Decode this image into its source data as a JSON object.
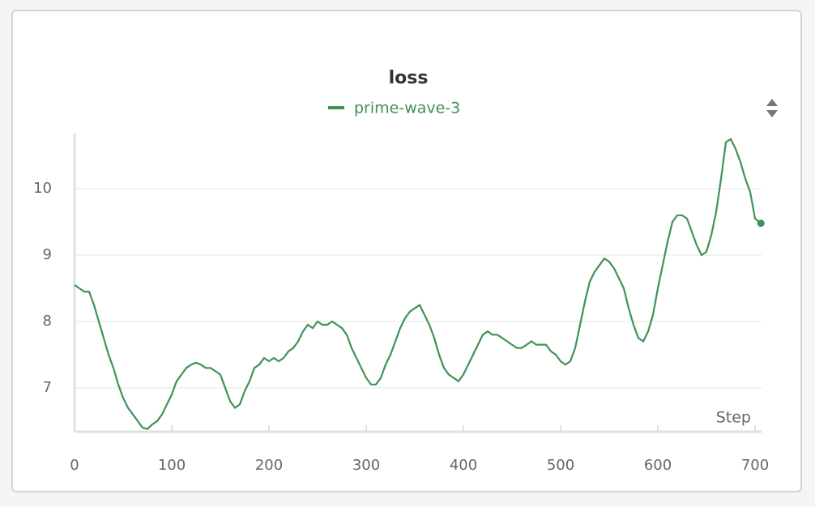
{
  "chart_data": {
    "type": "line",
    "title": "loss",
    "xlabel": "Step",
    "x": [
      0,
      5,
      10,
      15,
      20,
      25,
      30,
      35,
      40,
      45,
      50,
      55,
      60,
      65,
      70,
      75,
      80,
      85,
      90,
      95,
      100,
      105,
      110,
      115,
      120,
      125,
      130,
      135,
      140,
      145,
      150,
      155,
      160,
      165,
      170,
      175,
      180,
      185,
      190,
      195,
      200,
      205,
      210,
      215,
      220,
      225,
      230,
      235,
      240,
      245,
      250,
      255,
      260,
      265,
      270,
      275,
      280,
      285,
      290,
      295,
      300,
      305,
      310,
      315,
      320,
      325,
      330,
      335,
      340,
      345,
      350,
      355,
      360,
      365,
      370,
      375,
      380,
      385,
      390,
      395,
      400,
      405,
      410,
      415,
      420,
      425,
      430,
      435,
      440,
      445,
      450,
      455,
      460,
      465,
      470,
      475,
      480,
      485,
      490,
      495,
      500,
      505,
      510,
      515,
      520,
      525,
      530,
      535,
      540,
      545,
      550,
      555,
      560,
      565,
      570,
      575,
      580,
      585,
      590,
      595,
      600,
      605,
      610,
      615,
      620,
      625,
      630,
      635,
      640,
      645,
      650,
      655,
      660,
      665,
      670,
      675,
      680,
      685,
      690,
      695,
      700,
      706
    ],
    "series": [
      {
        "name": "prime-wave-3",
        "color": "#3f9255",
        "values": [
          8.55,
          8.5,
          8.45,
          8.45,
          8.25,
          8.0,
          7.75,
          7.5,
          7.3,
          7.05,
          6.85,
          6.7,
          6.6,
          6.5,
          6.4,
          6.38,
          6.45,
          6.5,
          6.6,
          6.75,
          6.9,
          7.1,
          7.2,
          7.3,
          7.35,
          7.38,
          7.35,
          7.3,
          7.3,
          7.25,
          7.2,
          7.0,
          6.8,
          6.7,
          6.75,
          6.95,
          7.1,
          7.3,
          7.35,
          7.45,
          7.4,
          7.45,
          7.4,
          7.45,
          7.55,
          7.6,
          7.7,
          7.85,
          7.95,
          7.9,
          8.0,
          7.95,
          7.95,
          8.0,
          7.95,
          7.9,
          7.8,
          7.6,
          7.45,
          7.3,
          7.15,
          7.05,
          7.05,
          7.15,
          7.35,
          7.5,
          7.7,
          7.9,
          8.05,
          8.15,
          8.2,
          8.25,
          8.1,
          7.95,
          7.75,
          7.5,
          7.3,
          7.2,
          7.15,
          7.1,
          7.2,
          7.35,
          7.5,
          7.65,
          7.8,
          7.85,
          7.8,
          7.8,
          7.75,
          7.7,
          7.65,
          7.6,
          7.6,
          7.65,
          7.7,
          7.65,
          7.65,
          7.65,
          7.55,
          7.5,
          7.4,
          7.35,
          7.4,
          7.6,
          7.95,
          8.3,
          8.6,
          8.75,
          8.85,
          8.95,
          8.9,
          8.8,
          8.65,
          8.5,
          8.2,
          7.95,
          7.75,
          7.7,
          7.85,
          8.1,
          8.5,
          8.85,
          9.2,
          9.5,
          9.6,
          9.6,
          9.55,
          9.35,
          9.15,
          9.0,
          9.05,
          9.3,
          9.65,
          10.15,
          10.7,
          10.75,
          10.6,
          10.4,
          10.15,
          9.95,
          9.55,
          9.48
        ]
      }
    ],
    "xlim": [
      0,
      707
    ],
    "ylim": [
      6.34,
      10.83
    ],
    "xticks": [
      0,
      100,
      200,
      300,
      400,
      500,
      600,
      700
    ],
    "yticks": [
      7,
      8,
      9,
      10
    ],
    "grid": true
  }
}
